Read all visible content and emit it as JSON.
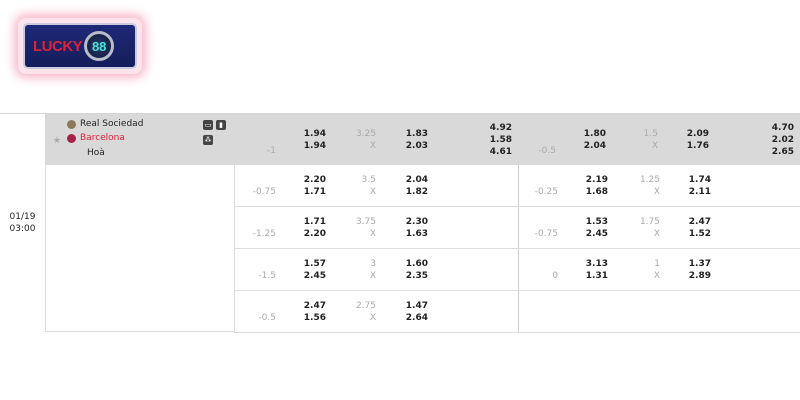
{
  "logo": {
    "text": "LUCKY",
    "number": "88"
  },
  "match": {
    "date": "01/19",
    "time": "03:00",
    "home": "Real Sociedad",
    "away": "Barcelona",
    "draw": "Hoà",
    "colors": {
      "away": "#e0213a",
      "header_bg": "#d9d9d9"
    },
    "icons": [
      "star-icon",
      "tv-icon",
      "stats-icon",
      "lineup-icon"
    ]
  },
  "main_row": {
    "h1": {
      "line": "-1",
      "odds": [
        "1.94",
        "1.94"
      ],
      "ou_line": "3.25",
      "ou_x": "X",
      "ou_odds": [
        "1.83",
        "2.03"
      ],
      "x12": [
        "4.92",
        "1.58",
        "4.61"
      ]
    },
    "h2": {
      "line": "-0.5",
      "odds": [
        "1.80",
        "2.04"
      ],
      "ou_line": "1.5",
      "ou_x": "X",
      "ou_odds": [
        "2.09",
        "1.76"
      ],
      "x12": [
        "4.70",
        "2.02",
        "2.65"
      ]
    }
  },
  "rows": [
    {
      "h1": {
        "line": "-0.75",
        "odds": [
          "2.20",
          "1.71"
        ],
        "ou_line": "3.5",
        "ou_x": "X",
        "ou_odds": [
          "2.04",
          "1.82"
        ]
      },
      "h2": {
        "line": "-0.25",
        "odds": [
          "2.19",
          "1.68"
        ],
        "ou_line": "1.25",
        "ou_x": "X",
        "ou_odds": [
          "1.74",
          "2.11"
        ]
      }
    },
    {
      "h1": {
        "line": "-1.25",
        "odds": [
          "1.71",
          "2.20"
        ],
        "ou_line": "3.75",
        "ou_x": "X",
        "ou_odds": [
          "2.30",
          "1.63"
        ]
      },
      "h2": {
        "line": "-0.75",
        "odds": [
          "1.53",
          "2.45"
        ],
        "ou_line": "1.75",
        "ou_x": "X",
        "ou_odds": [
          "2.47",
          "1.52"
        ]
      }
    },
    {
      "h1": {
        "line": "-1.5",
        "odds": [
          "1.57",
          "2.45"
        ],
        "ou_line": "3",
        "ou_x": "X",
        "ou_odds": [
          "1.60",
          "2.35"
        ]
      },
      "h2": {
        "line": "0",
        "odds": [
          "3.13",
          "1.31"
        ],
        "ou_line": "1",
        "ou_x": "X",
        "ou_odds": [
          "1.37",
          "2.89"
        ]
      }
    },
    {
      "h1": {
        "line": "-0.5",
        "odds": [
          "2.47",
          "1.56"
        ],
        "ou_line": "2.75",
        "ou_x": "X",
        "ou_odds": [
          "1.47",
          "2.64"
        ]
      }
    }
  ]
}
